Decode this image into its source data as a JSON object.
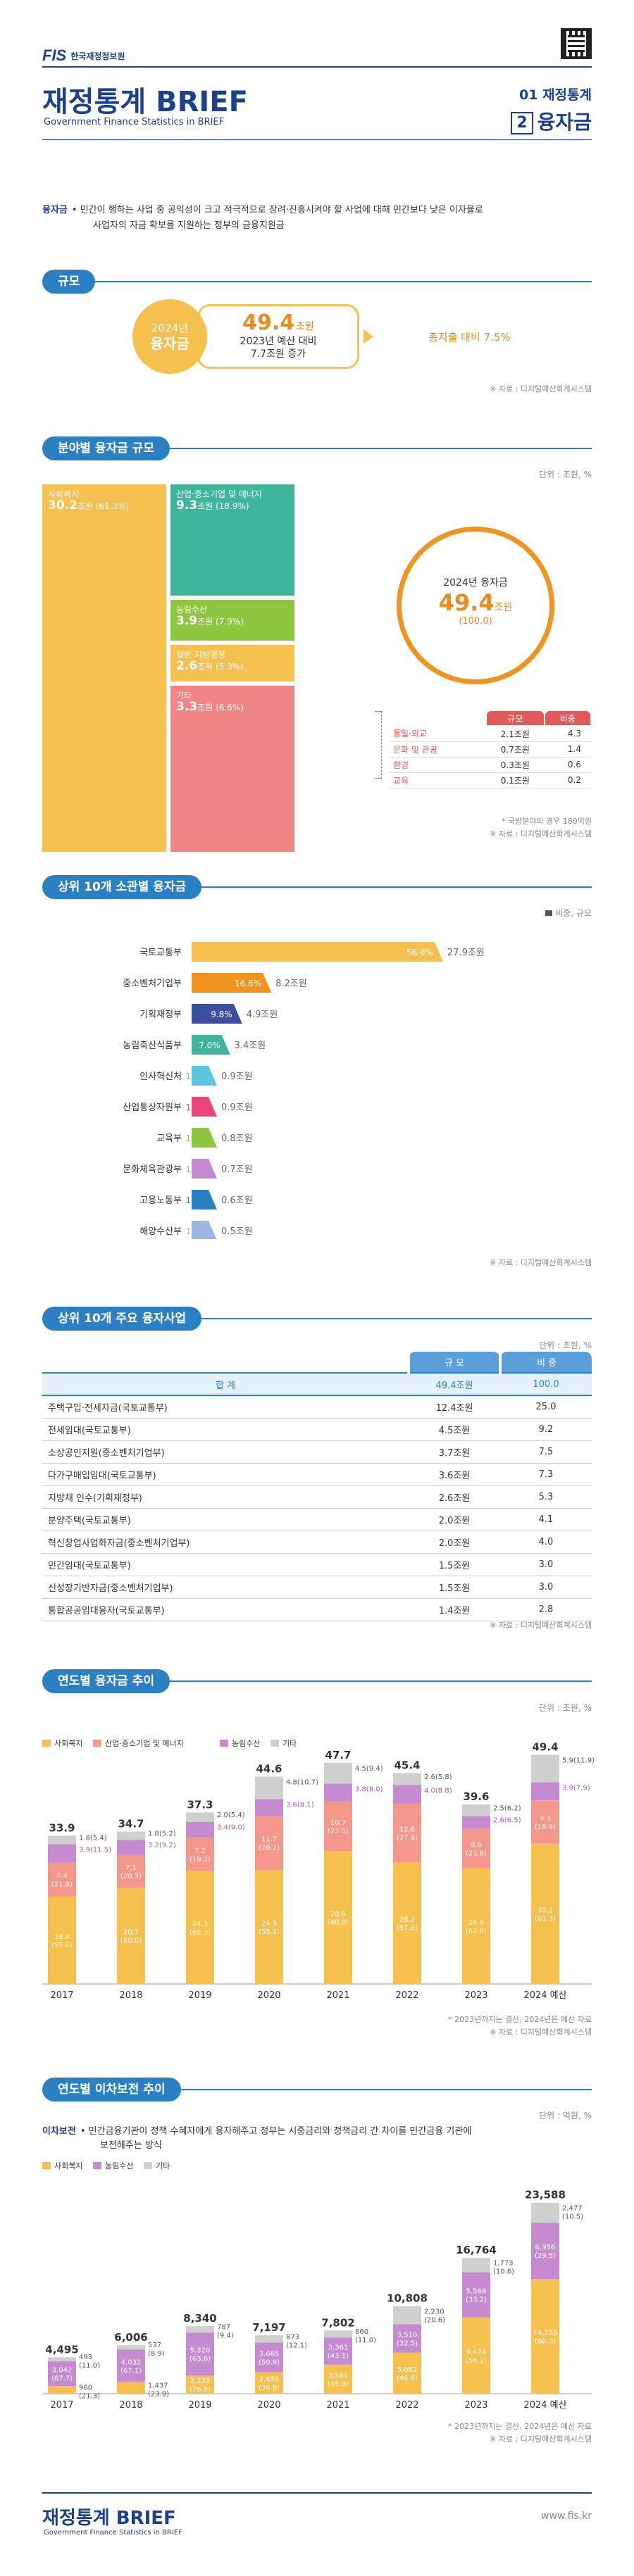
{
  "header": {
    "logo_fis": "FIS",
    "org": "한국재정정보원",
    "title": "재정통계 BRIEF",
    "subtitle": "Government Finance Statistics in BRIEF",
    "issue": "01 재정통계",
    "issue_num": "2",
    "topic": "융자금"
  },
  "intro": {
    "term": "융자금",
    "desc1": "• 민간이 행하는 사업 중 공익성이 크고 적극적으로 장려·진흥시켜야 할 사업에 대해 민간보다 낮은 이자율로",
    "desc2": "사업자의 자금 확보를 지원하는 정부의 금융지원금"
  },
  "scale": {
    "title": "규모",
    "year": "2024년",
    "label": "융자금",
    "amount": "49.4",
    "unit": "조원",
    "line1": "2023년 예산 대비",
    "line2": "7.7조원 증가",
    "growth": "총지출 대비 7.5%",
    "source": "※ 자료 : 디지털예산회계시스템"
  },
  "sector": {
    "title": "분야별 융자금 규모",
    "unit": "단위 : 조원, %",
    "blocks": [
      {
        "name": "사회복지",
        "value": "30.2",
        "pct": "(61.3%)",
        "color": "#f5c04e"
      },
      {
        "name": "산업·중소기업 및 에너지",
        "value": "9.3",
        "pct": "(18.9%)",
        "color": "#3fb59d"
      },
      {
        "name": "농림수산",
        "value": "3.9",
        "pct": "(7.9%)",
        "color": "#8dc63f"
      },
      {
        "name": "일반·지방행정",
        "value": "2.6",
        "pct": "(5.3%)",
        "color": "#f5c04e"
      },
      {
        "name": "기타",
        "value": "3.3",
        "pct": "(6.6%)",
        "color": "#f08585"
      }
    ],
    "unit_word": "조원",
    "total_label": "2024년 융자금",
    "total": "49.4",
    "total_unit": "조원",
    "total_pct": "(100.0)",
    "other_head": [
      "규모",
      "비중"
    ],
    "other_rows": [
      [
        "통일·외교",
        "2.1조원",
        "4.3"
      ],
      [
        "문화 및 관광",
        "0.7조원",
        "1.4"
      ],
      [
        "환경",
        "0.3조원",
        "0.6"
      ],
      [
        "교육",
        "0.1조원",
        "0.2"
      ]
    ],
    "note": "* 국방분야의 경우 180억원",
    "source": "※ 자료 : 디지털예산회계시스템"
  },
  "top10dept": {
    "title": "상위 10개 소관별 융자금",
    "legend": "비중, 규모",
    "source": "※ 자료 : 디지털예산회계시스템",
    "rows": [
      {
        "name": "국토교통부",
        "pct": "56.6%",
        "amt": "27.9조원",
        "p": 56.6,
        "color": "#f5c04e"
      },
      {
        "name": "중소벤처기업부",
        "pct": "16.6%",
        "amt": "8.2조원",
        "p": 16.6,
        "color": "#f0931f"
      },
      {
        "name": "기획재정부",
        "pct": "9.8%",
        "amt": "4.9조원",
        "p": 9.8,
        "color": "#3b4f9f"
      },
      {
        "name": "농림축산식품부",
        "pct": "7.0%",
        "amt": "3.4조원",
        "p": 7.0,
        "color": "#3fb59d"
      },
      {
        "name": "인사혁신처",
        "pct": "1.9%",
        "amt": "0.9조원",
        "p": 1.9,
        "color": "#5cc6e0"
      },
      {
        "name": "산업통상자원부",
        "pct": "1.9%",
        "amt": "0.9조원",
        "p": 1.9,
        "color": "#e8467c"
      },
      {
        "name": "교육부",
        "pct": "1.6%",
        "amt": "0.8조원",
        "p": 1.6,
        "color": "#8dc63f"
      },
      {
        "name": "문화체육관광부",
        "pct": "1.4%",
        "amt": "0.7조원",
        "p": 1.4,
        "color": "#c58ad0"
      },
      {
        "name": "고용노동부",
        "pct": "1.3%",
        "amt": "0.6조원",
        "p": 1.3,
        "color": "#2b7fc3"
      },
      {
        "name": "해양수산부",
        "pct": "1.0%",
        "amt": "0.5조원",
        "p": 1.0,
        "color": "#9ab8e0"
      }
    ]
  },
  "top10proj": {
    "title": "상위 10개 주요 융자사업",
    "unit": "단위 : 조원, %",
    "head": [
      "규 모",
      "비 중"
    ],
    "total": [
      "합 계",
      "49.4조원",
      "100.0"
    ],
    "rows": [
      [
        "주택구입·전세자금(국토교통부)",
        "12.4조원",
        "25.0"
      ],
      [
        "전세임대(국토교통부)",
        "4.5조원",
        "9.2"
      ],
      [
        "소상공인지원(중소벤처기업부)",
        "3.7조원",
        "7.5"
      ],
      [
        "다가구매입임대(국토교통부)",
        "3.6조원",
        "7.3"
      ],
      [
        "지방채 인수(기획재정부)",
        "2.6조원",
        "5.3"
      ],
      [
        "분양주택(국토교통부)",
        "2.0조원",
        "4.1"
      ],
      [
        "혁신창업사업화자금(중소벤처기업부)",
        "2.0조원",
        "4.0"
      ],
      [
        "민간임대(국토교통부)",
        "1.5조원",
        "3.0"
      ],
      [
        "신성장기반자금(중소벤처기업부)",
        "1.5조원",
        "3.0"
      ],
      [
        "통합공공임대융자(국토교통부)",
        "1.4조원",
        "2.8"
      ]
    ],
    "source": "※ 자료 : 디지털예산회계시스템"
  },
  "chart_data": [
    {
      "type": "bar",
      "title": "연도별 융자금 추이",
      "unit": "단위 : 조원, %",
      "categories": [
        "2017",
        "2018",
        "2019",
        "2020",
        "2021",
        "2022",
        "2023",
        "2024 예산"
      ],
      "totals": [
        "33.9",
        "34.7",
        "37.3",
        "44.6",
        "47.7",
        "45.4",
        "39.6",
        "49.4"
      ],
      "series": [
        {
          "name": "사회복지",
          "color": "#f5c04e",
          "values": [
            18.8,
            20.7,
            24.3,
            24.5,
            28.6,
            26.2,
            24.9,
            30.2
          ],
          "labels": [
            "18.8\n(55.6)",
            "20.7\n(60.0)",
            "24.3\n(65.3)",
            "24.5\n(55.1)",
            "28.6\n(60.0)",
            "26.2\n(57.6)",
            "24.9\n(62.8)",
            "30.2\n(61.3)"
          ]
        },
        {
          "name": "산업·중소기업 및 에너지",
          "color": "#f3978a",
          "values": [
            7.4,
            7.1,
            7.2,
            11.7,
            10.7,
            12.6,
            8.6,
            9.3
          ],
          "labels": [
            "7.4\n(21.9)",
            "7.1\n(20.3)",
            "7.2\n(19.2)",
            "11.7\n(26.2)",
            "10.7\n(22.5)",
            "12.6\n(27.8)",
            "8.6\n(21.8)",
            "9.3\n(18.9)"
          ]
        },
        {
          "name": "농림수산",
          "color": "#c58ad0",
          "values": [
            3.9,
            3.2,
            3.4,
            3.6,
            3.8,
            4.0,
            2.6,
            3.9
          ],
          "labels": [
            "3.9(11.5)",
            "3.2(9.2)",
            "3.4(9.0)",
            "3.6(8.1)",
            "3.8(8.0)",
            "4.0(8.8)",
            "2.6(6.5)",
            "3.9(7.9)"
          ]
        },
        {
          "name": "기타",
          "color": "#cfcfcf",
          "values": [
            1.8,
            1.8,
            2.0,
            4.8,
            4.5,
            2.6,
            2.5,
            5.9
          ],
          "labels": [
            "1.8(5.4)",
            "1.8(5.2)",
            "2.0(5.4)",
            "4.8(10.7)",
            "4.5(9.4)",
            "2.6(5.8)",
            "2.5(6.2)",
            "5.9(11.9)"
          ]
        }
      ],
      "note": "* 2023년까지는 결산, 2024년은 예산 자료",
      "source": "※ 자료 : 디지털예산회계시스템"
    },
    {
      "type": "bar",
      "title": "연도별 이차보전 추이",
      "unit": "단위 : 억원, %",
      "categories": [
        "2017",
        "2018",
        "2019",
        "2020",
        "2021",
        "2022",
        "2023",
        "2024 예산"
      ],
      "totals": [
        "4,495",
        "6,006",
        "8,340",
        "7,197",
        "7,802",
        "10,808",
        "16,764",
        "23,588"
      ],
      "series": [
        {
          "name": "사회복지",
          "color": "#f5c04e",
          "values": [
            960,
            1437,
            2233,
            2659,
            3581,
            5062,
            9424,
            14155
          ],
          "labels": [
            "960\n(21.3)",
            "1,437\n(23.9)",
            "2,233\n(26.8)",
            "2,659\n(36.9)",
            "3,581\n(45.9)",
            "5,062\n(46.8)",
            "9,424\n(56.2)",
            "14,155\n(60.0)"
          ]
        },
        {
          "name": "농림수산",
          "color": "#c58ad0",
          "values": [
            3042,
            4032,
            5320,
            3665,
            3361,
            3516,
            5568,
            6956
          ],
          "labels": [
            "3,042\n(67.7)",
            "4,032\n(67.1)",
            "5,320\n(63.8)",
            "3,665\n(50.9)",
            "3,361\n(43.1)",
            "3,516\n(32.5)",
            "5,568\n(33.2)",
            "6,956\n(29.5)"
          ]
        },
        {
          "name": "기타",
          "color": "#cfcfcf",
          "values": [
            493,
            537,
            787,
            873,
            860,
            2230,
            1773,
            2477
          ],
          "labels": [
            "493\n(11.0)",
            "537\n(8.9)",
            "787\n(9.4)",
            "873\n(12.1)",
            "860\n(11.0)",
            "2,230\n(20.6)",
            "1,773\n(10.6)",
            "2,477\n(10.5)"
          ]
        }
      ],
      "note": "* 2023년까지는 결산, 2024년은 예산 자료",
      "source": "※ 자료 : 디지털예산회계시스템"
    }
  ],
  "interest": {
    "term": "이차보전",
    "desc1": "• 민간금융기관이 정책 수혜자에게 융자해주고 정부는 시중금리와 정책금리 간 차이를 민간금융 기관에",
    "desc2": "보전해주는 방식"
  },
  "footer": {
    "title": "재정통계 BRIEF",
    "subtitle": "Government Finance Statistics in BRIEF",
    "url": "www.fis.kr"
  }
}
